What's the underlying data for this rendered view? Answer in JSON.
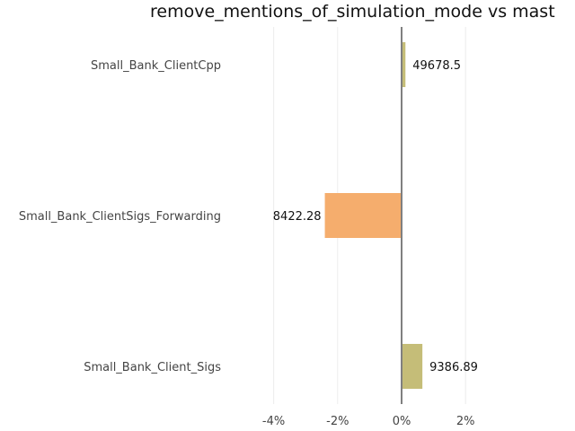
{
  "chart_data": {
    "type": "bar",
    "orientation": "horizontal",
    "title": "remove_mentions_of_simulation_mode vs mast",
    "xlabel": "",
    "ylabel": "",
    "categories": [
      "Small_Bank_ClientCpp",
      "Small_Bank_ClientSigs_Forwarding",
      "Small_Bank_Client_Sigs"
    ],
    "values": [
      0.12,
      -2.4,
      0.65
    ],
    "data_labels": [
      "49678.5",
      "8422.28",
      "9386.89"
    ],
    "colors": [
      "#c5bd78",
      "#f5ad6d",
      "#c5bd78"
    ],
    "xlim": [
      -4.6,
      2.4
    ],
    "xticks": [
      -4,
      -2,
      0,
      2
    ],
    "xtick_labels": [
      "-4%",
      "-2%",
      "0%",
      "2%"
    ],
    "grid": true,
    "legend": "none"
  }
}
